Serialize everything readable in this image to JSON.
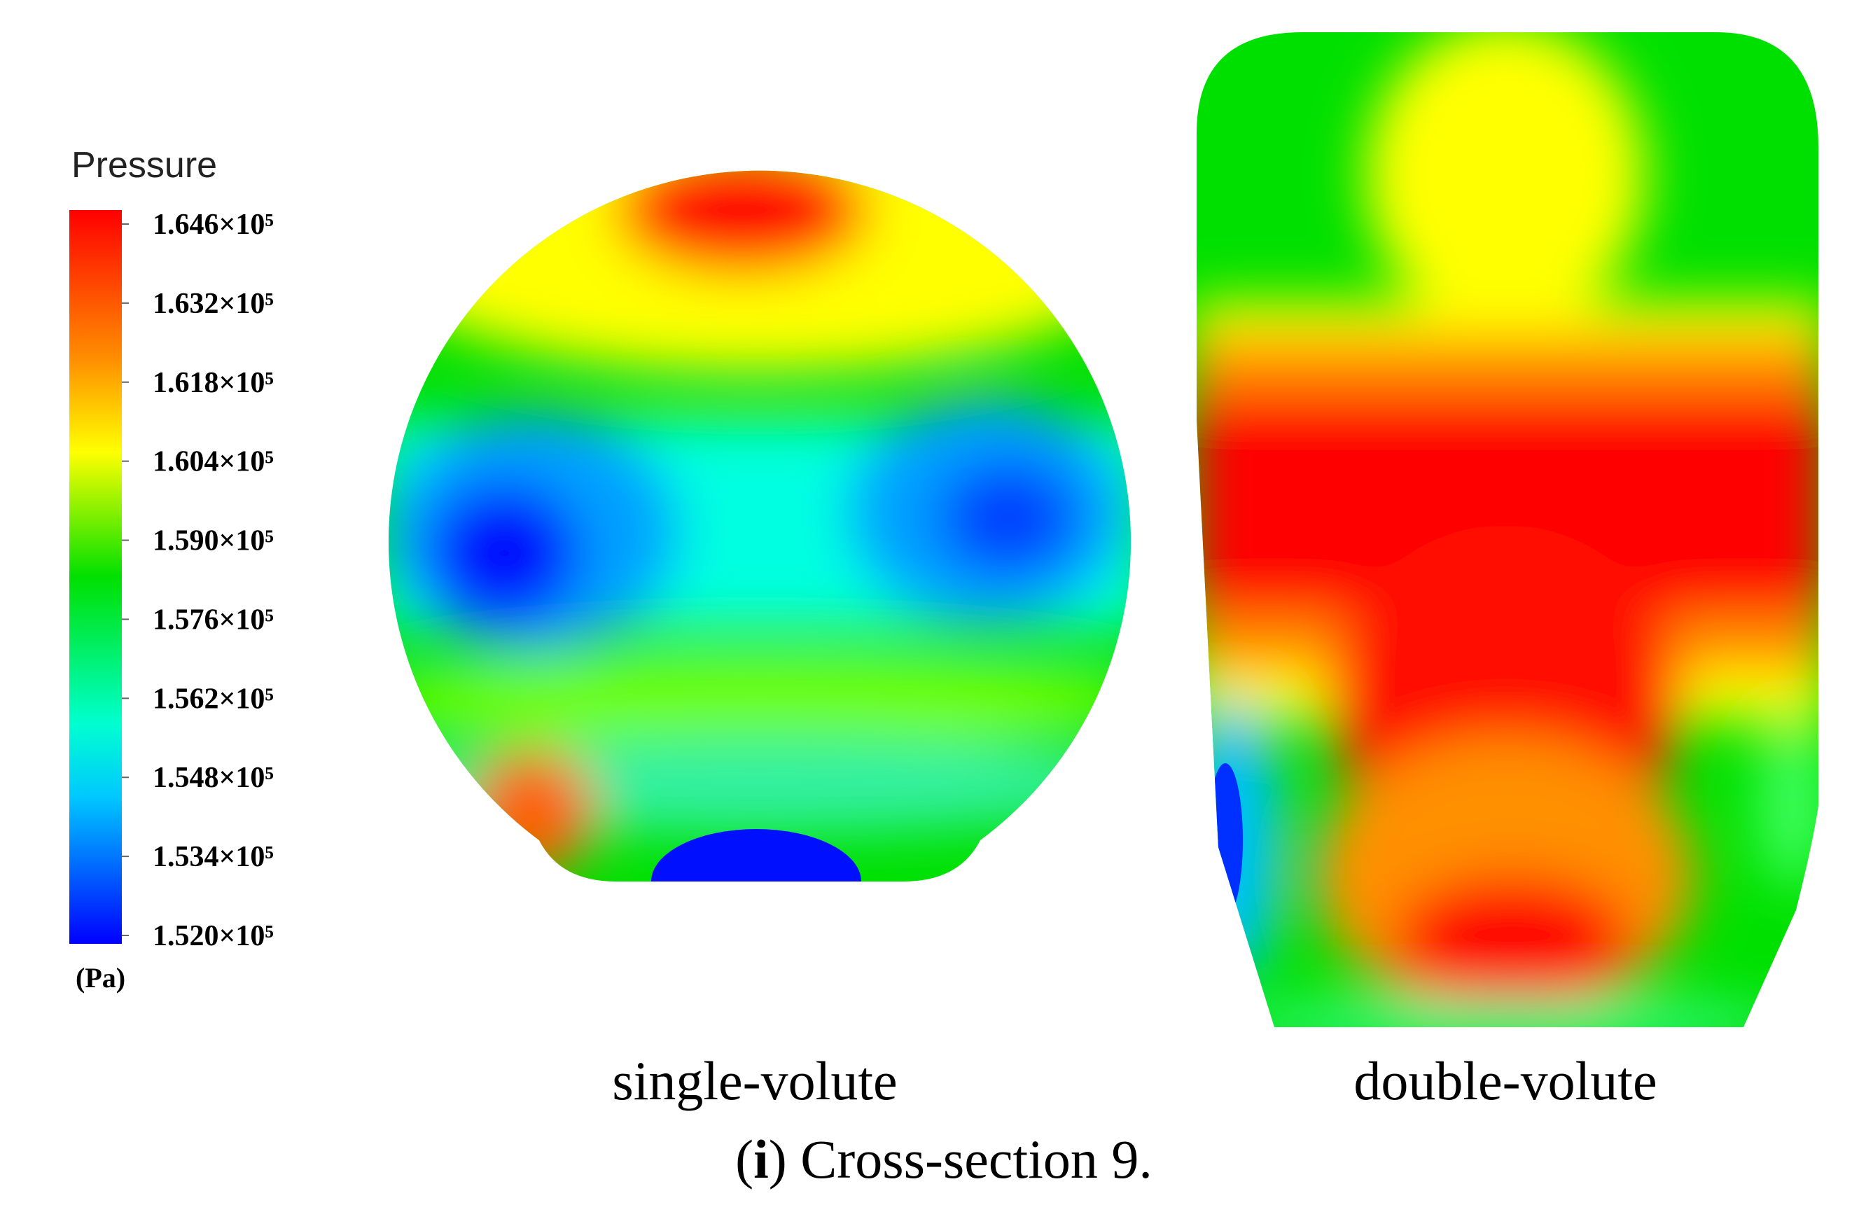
{
  "legend": {
    "title": "Pressure",
    "unit": "(Pa)",
    "range": [
      152000,
      164600
    ],
    "ticks": [
      {
        "value": 164600,
        "label": "1.646×10⁵"
      },
      {
        "value": 163200,
        "label": "1.632×10⁵"
      },
      {
        "value": 161800,
        "label": "1.618×10⁵"
      },
      {
        "value": 160400,
        "label": "1.604×10⁵"
      },
      {
        "value": 159000,
        "label": "1.590×10⁵"
      },
      {
        "value": 157600,
        "label": "1.576×10⁵"
      },
      {
        "value": 156200,
        "label": "1.562×10⁵"
      },
      {
        "value": 154800,
        "label": "1.548×10⁵"
      },
      {
        "value": 153400,
        "label": "1.534×10⁵"
      },
      {
        "value": 152000,
        "label": "1.520×10⁵"
      }
    ]
  },
  "panels": [
    {
      "label": "single-volute"
    },
    {
      "label": "double-volute"
    }
  ],
  "caption": {
    "parts": [
      "(",
      "i",
      ") Cross-section 9."
    ]
  }
}
